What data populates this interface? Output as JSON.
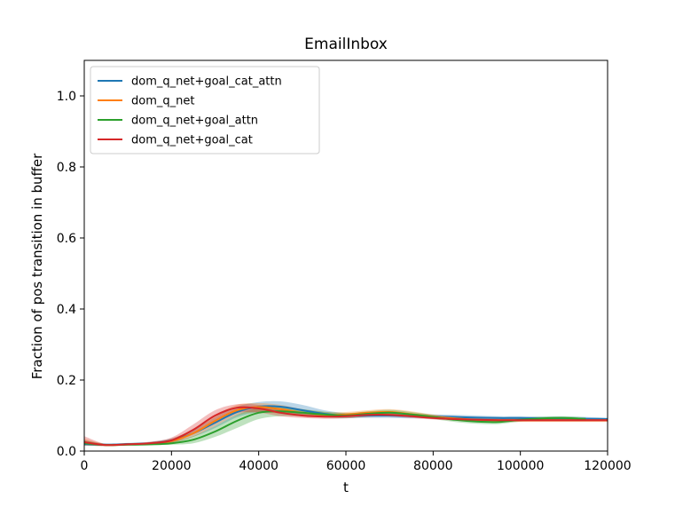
{
  "chart_data": {
    "type": "line",
    "title": "EmailInbox",
    "xlabel": "t",
    "ylabel": "Fraction of pos transition in buffer",
    "xlim": [
      0,
      120000
    ],
    "ylim": [
      0,
      1.1
    ],
    "xticks": [
      0,
      20000,
      40000,
      60000,
      80000,
      100000,
      120000
    ],
    "yticks": [
      0.0,
      0.2,
      0.4,
      0.6,
      0.8,
      1.0
    ],
    "xtick_labels": [
      "0",
      "20000",
      "40000",
      "60000",
      "80000",
      "100000",
      "120000"
    ],
    "ytick_labels": [
      "0.0",
      "0.2",
      "0.4",
      "0.6",
      "0.8",
      "1.0"
    ],
    "legend_position": "top-left",
    "grid": false,
    "series": [
      {
        "name": "dom_q_net+goal_cat_attn",
        "color": "#1f77b4",
        "x": [
          0,
          5000,
          10000,
          15000,
          20000,
          25000,
          30000,
          35000,
          40000,
          45000,
          50000,
          55000,
          60000,
          65000,
          70000,
          75000,
          80000,
          85000,
          90000,
          95000,
          100000,
          105000,
          110000,
          115000,
          120000
        ],
        "y": [
          0.02,
          0.018,
          0.02,
          0.022,
          0.03,
          0.05,
          0.08,
          0.11,
          0.125,
          0.125,
          0.115,
          0.105,
          0.1,
          0.1,
          0.1,
          0.098,
          0.097,
          0.096,
          0.094,
          0.093,
          0.093,
          0.092,
          0.092,
          0.091,
          0.09
        ],
        "lower": [
          0.015,
          0.015,
          0.017,
          0.019,
          0.024,
          0.04,
          0.065,
          0.095,
          0.11,
          0.11,
          0.1,
          0.095,
          0.093,
          0.093,
          0.093,
          0.092,
          0.092,
          0.09,
          0.089,
          0.088,
          0.088,
          0.087,
          0.087,
          0.087,
          0.086
        ],
        "upper": [
          0.03,
          0.021,
          0.023,
          0.026,
          0.036,
          0.06,
          0.095,
          0.125,
          0.138,
          0.14,
          0.13,
          0.115,
          0.107,
          0.106,
          0.106,
          0.105,
          0.103,
          0.102,
          0.1,
          0.098,
          0.098,
          0.097,
          0.097,
          0.096,
          0.094
        ]
      },
      {
        "name": "dom_q_net",
        "color": "#ff7f0e",
        "x": [
          0,
          5000,
          10000,
          15000,
          20000,
          25000,
          30000,
          35000,
          40000,
          45000,
          50000,
          55000,
          60000,
          65000,
          70000,
          75000,
          80000,
          85000,
          90000,
          95000,
          100000,
          105000,
          110000,
          115000,
          120000
        ],
        "y": [
          0.025,
          0.017,
          0.019,
          0.021,
          0.028,
          0.05,
          0.085,
          0.115,
          0.124,
          0.118,
          0.108,
          0.102,
          0.103,
          0.108,
          0.11,
          0.104,
          0.097,
          0.092,
          0.088,
          0.087,
          0.087,
          0.087,
          0.087,
          0.087,
          0.087
        ],
        "lower": [
          0.018,
          0.014,
          0.016,
          0.018,
          0.022,
          0.04,
          0.07,
          0.1,
          0.11,
          0.105,
          0.098,
          0.095,
          0.096,
          0.1,
          0.102,
          0.097,
          0.091,
          0.087,
          0.083,
          0.082,
          0.082,
          0.082,
          0.082,
          0.082,
          0.082
        ],
        "upper": [
          0.035,
          0.02,
          0.022,
          0.025,
          0.035,
          0.062,
          0.1,
          0.13,
          0.135,
          0.13,
          0.118,
          0.11,
          0.11,
          0.115,
          0.118,
          0.112,
          0.103,
          0.097,
          0.093,
          0.092,
          0.092,
          0.092,
          0.092,
          0.092,
          0.092
        ]
      },
      {
        "name": "dom_q_net+goal_attn",
        "color": "#2ca02c",
        "x": [
          0,
          5000,
          10000,
          15000,
          20000,
          25000,
          30000,
          35000,
          40000,
          45000,
          50000,
          55000,
          60000,
          65000,
          70000,
          75000,
          80000,
          85000,
          90000,
          95000,
          100000,
          105000,
          110000,
          115000
        ],
        "y": [
          0.022,
          0.017,
          0.018,
          0.019,
          0.022,
          0.032,
          0.055,
          0.085,
          0.108,
          0.112,
          0.108,
          0.103,
          0.1,
          0.105,
          0.108,
          0.103,
          0.096,
          0.088,
          0.083,
          0.082,
          0.088,
          0.092,
          0.093,
          0.09
        ],
        "lower": [
          0.016,
          0.014,
          0.015,
          0.016,
          0.018,
          0.022,
          0.04,
          0.065,
          0.09,
          0.098,
          0.098,
          0.095,
          0.093,
          0.097,
          0.1,
          0.096,
          0.09,
          0.082,
          0.077,
          0.076,
          0.083,
          0.087,
          0.088,
          0.086
        ],
        "upper": [
          0.03,
          0.02,
          0.021,
          0.022,
          0.027,
          0.042,
          0.07,
          0.102,
          0.122,
          0.125,
          0.118,
          0.111,
          0.107,
          0.112,
          0.116,
          0.11,
          0.102,
          0.094,
          0.089,
          0.088,
          0.094,
          0.097,
          0.098,
          0.095
        ]
      },
      {
        "name": "dom_q_net+goal_cat",
        "color": "#d62728",
        "x": [
          0,
          5000,
          10000,
          15000,
          20000,
          25000,
          30000,
          35000,
          40000,
          45000,
          50000,
          55000,
          60000,
          65000,
          70000,
          75000,
          80000,
          85000,
          90000,
          95000,
          100000,
          105000,
          110000,
          115000,
          120000
        ],
        "y": [
          0.025,
          0.017,
          0.019,
          0.022,
          0.03,
          0.06,
          0.1,
          0.122,
          0.12,
          0.108,
          0.1,
          0.097,
          0.098,
          0.102,
          0.102,
          0.098,
          0.093,
          0.09,
          0.088,
          0.087,
          0.087,
          0.087,
          0.087,
          0.087,
          0.087
        ],
        "lower": [
          0.015,
          0.014,
          0.016,
          0.018,
          0.024,
          0.048,
          0.085,
          0.108,
          0.108,
          0.098,
          0.093,
          0.091,
          0.092,
          0.096,
          0.097,
          0.093,
          0.089,
          0.086,
          0.084,
          0.083,
          0.083,
          0.083,
          0.083,
          0.083,
          0.083
        ],
        "upper": [
          0.042,
          0.02,
          0.022,
          0.026,
          0.038,
          0.075,
          0.115,
          0.132,
          0.13,
          0.118,
          0.108,
          0.103,
          0.104,
          0.108,
          0.108,
          0.103,
          0.098,
          0.094,
          0.092,
          0.091,
          0.091,
          0.091,
          0.091,
          0.091,
          0.091
        ]
      }
    ]
  }
}
